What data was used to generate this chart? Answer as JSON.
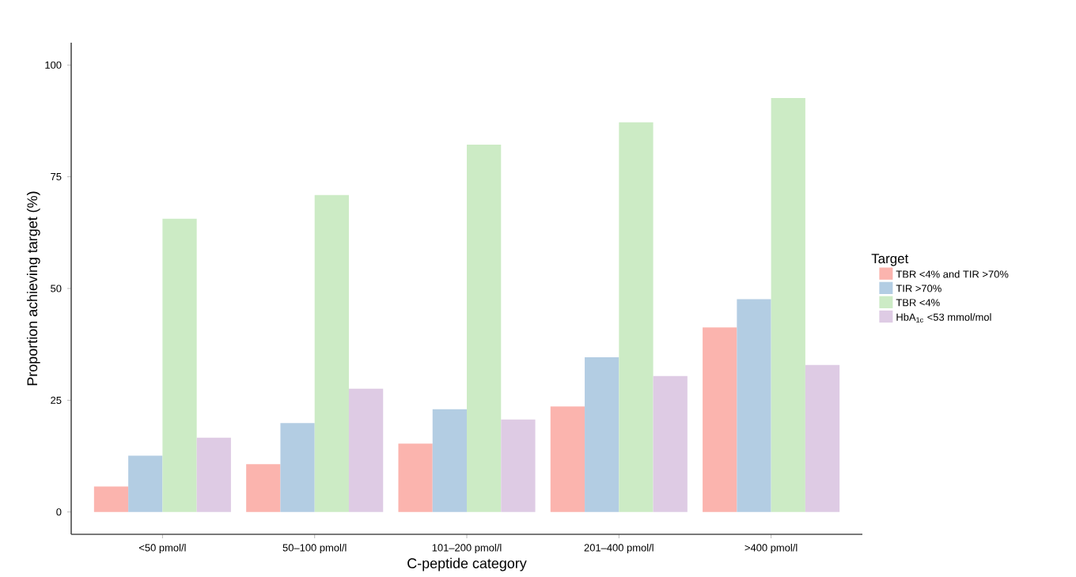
{
  "chart_data": {
    "type": "bar",
    "xlabel": "C-peptide category",
    "ylabel": "Proportion achieving target (%)",
    "legend_title": "Target",
    "categories": [
      "<50 pmol/l",
      "50–100 pmol/l",
      "101–200 pmol/l",
      "201–400 pmol/l",
      ">400 pmol/l"
    ],
    "series": [
      {
        "name": "TBR <4% and TIR >70%",
        "color": "#fbb4ae",
        "values": [
          5.7,
          10.7,
          15.3,
          23.6,
          41.3
        ]
      },
      {
        "name": "TIR >70%",
        "color": "#b3cde3",
        "values": [
          12.6,
          19.9,
          23.0,
          34.6,
          47.6
        ]
      },
      {
        "name": "TBR <4%",
        "color": "#ccebc5",
        "values": [
          65.6,
          70.9,
          82.2,
          87.2,
          92.6
        ]
      },
      {
        "name": "HbA$_{1c}$ <53 mmol/mol",
        "color": "#decbe4",
        "values": [
          16.6,
          27.6,
          20.7,
          30.4,
          32.9
        ]
      }
    ],
    "ylim": [
      -5,
      105
    ],
    "yticks": [
      0,
      25,
      50,
      75,
      100
    ],
    "grid": false,
    "legend": "right"
  }
}
